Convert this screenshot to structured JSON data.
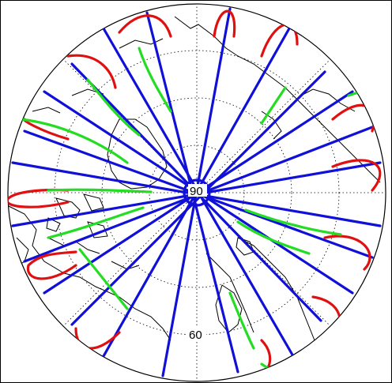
{
  "map": {
    "projection": "north-polar-stereographic",
    "graticule_labels": {
      "center_lat": "90",
      "outer_lat": "60"
    },
    "grid": "dotted",
    "track_colors": {
      "red": "#e01010",
      "green": "#22dd22",
      "blue": "#1010d8"
    },
    "coastline_color": "#000000"
  }
}
